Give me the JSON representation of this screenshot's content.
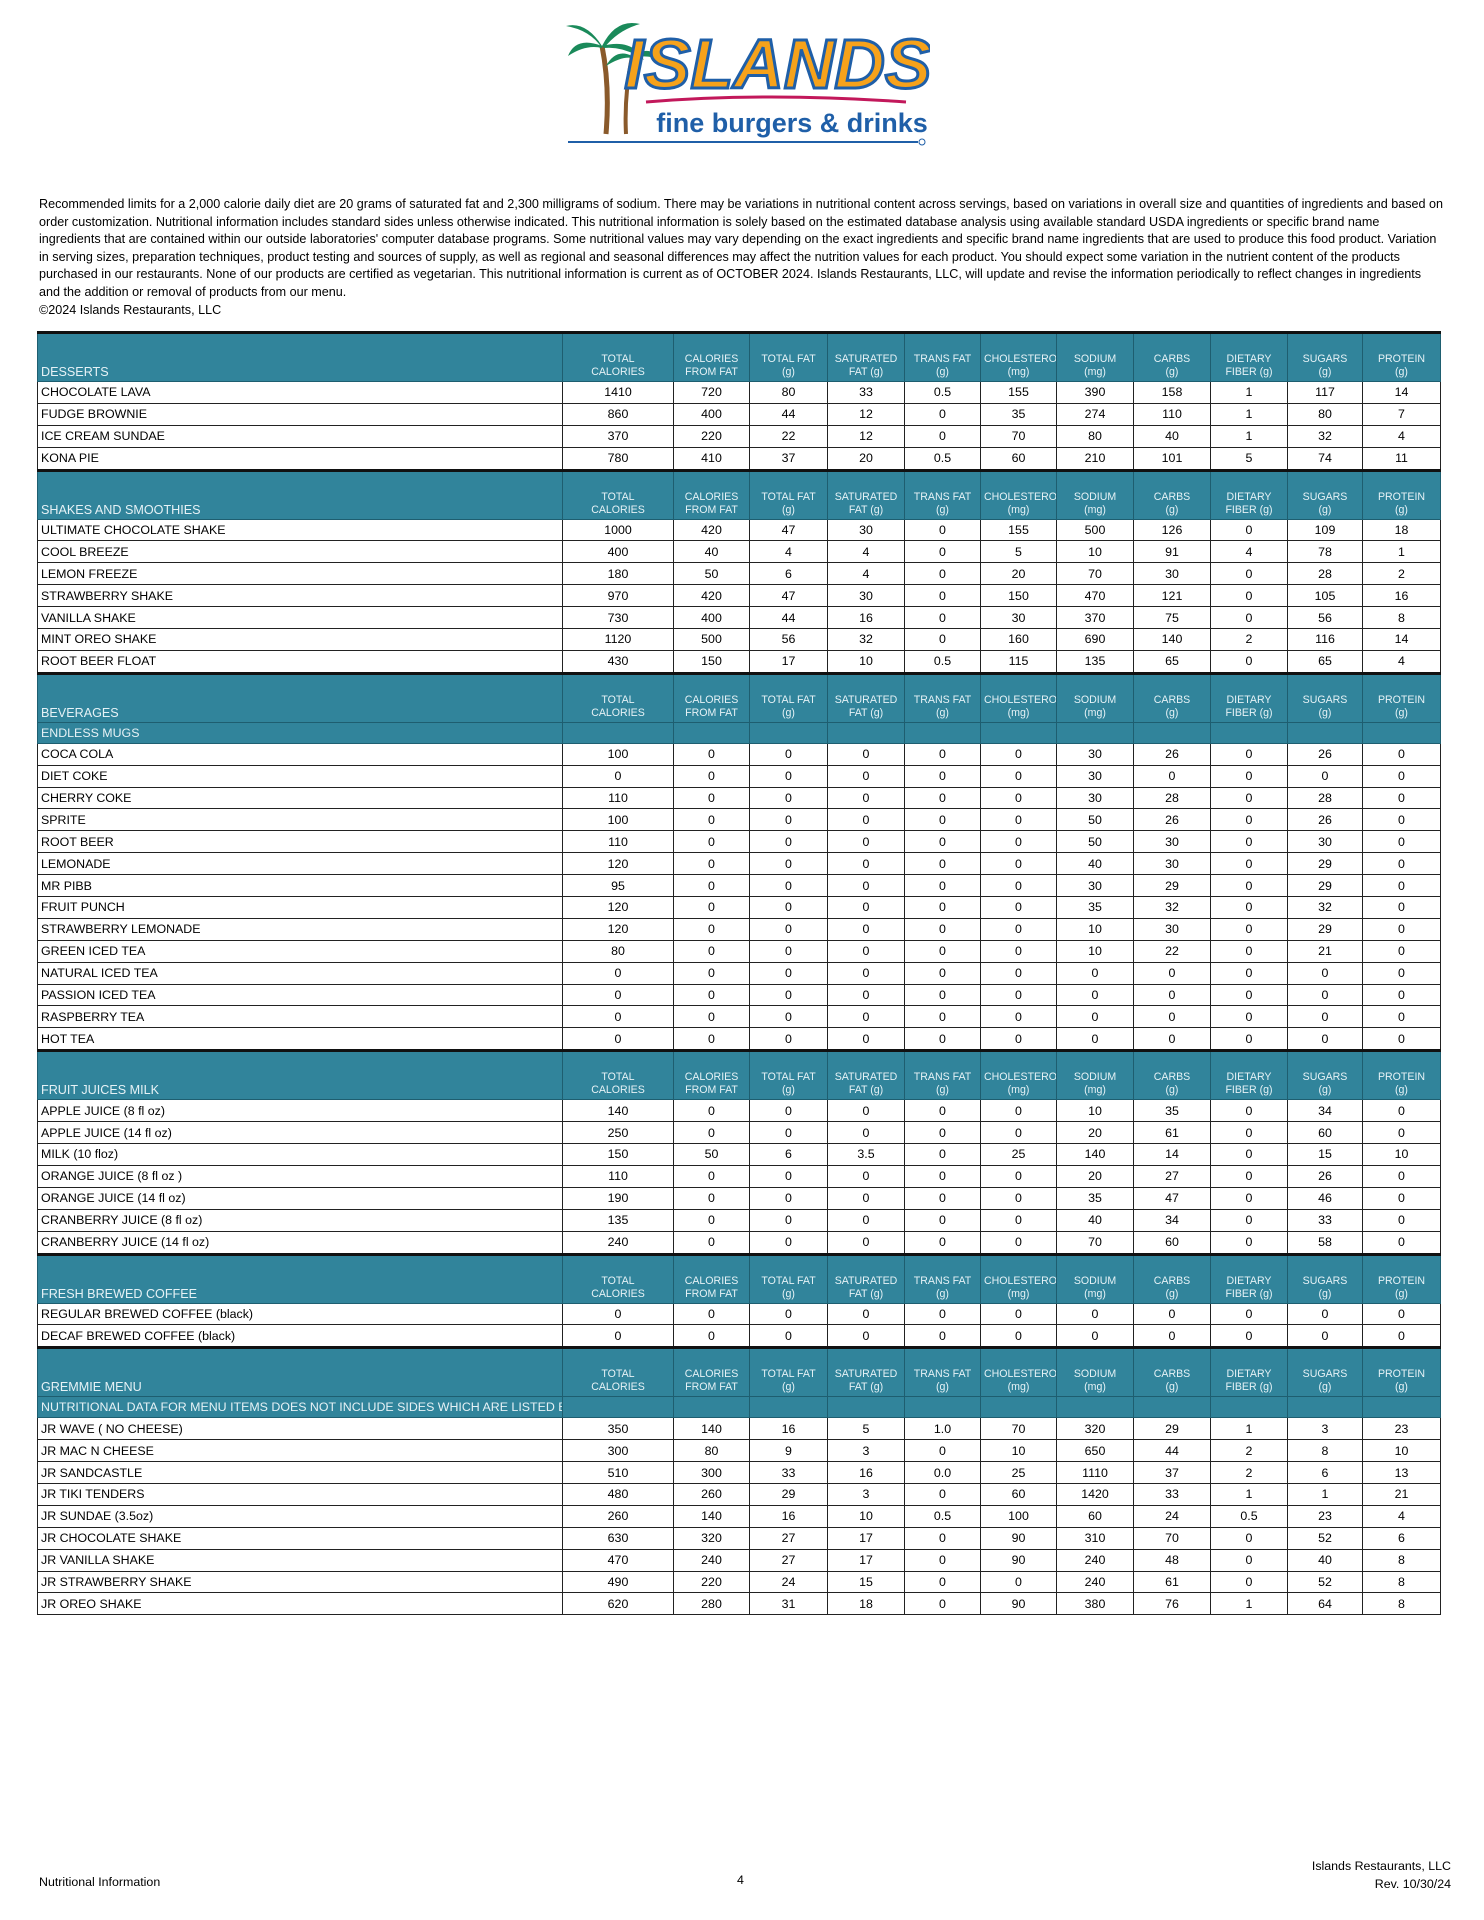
{
  "logo": {
    "brand": "ISLANDS",
    "tagline": "fine burgers & drinks"
  },
  "disclaimer": "Recommended limits for a 2,000 calorie daily diet are 20 grams of saturated fat and 2,300 milligrams of sodium. There may be variations in nutritional content across servings, based on variations in overall size and quantities of ingredients and based on order customization. Nutritional information includes standard sides unless otherwise indicated. This nutritional information is solely based on the estimated database analysis using available standard USDA ingredients or specific brand name ingredients that are contained within our outside laboratories' computer database programs. Some nutritional values may vary depending on the exact ingredients and specific brand name ingredients that are used to produce this food product.  Variation in serving sizes, preparation techniques, product testing and sources of supply, as well as regional and seasonal differences may affect the nutrition values for each product. You should expect some variation in the nutrient content of the products purchased in our restaurants. None of our products are certified as vegetarian. This nutritional information is current as of OCTOBER 2024.  Islands Restaurants, LLC, will update and revise the information periodically to reflect changes in ingredients and the addition or removal of products from our menu.",
  "copyright": "©2024 Islands Restaurants, LLC",
  "columns": [
    [
      "TOTAL",
      "CALORIES"
    ],
    [
      "CALORIES",
      "FROM FAT"
    ],
    [
      "TOTAL FAT",
      "(g)"
    ],
    [
      "SATURATED",
      "FAT (g)"
    ],
    [
      "TRANS FAT",
      "(g)"
    ],
    [
      "CHOLESTEROL",
      "(mg)"
    ],
    [
      "SODIUM",
      "(mg)"
    ],
    [
      "CARBS",
      "(g)"
    ],
    [
      "DIETARY",
      "FIBER (g)"
    ],
    [
      "SUGARS",
      "(g)"
    ],
    [
      "PROTEIN",
      "(g)"
    ]
  ],
  "header_color": "#31849b",
  "sections": [
    {
      "title": "DESSERTS",
      "rows": [
        [
          "CHOCOLATE LAVA",
          "1410",
          "720",
          "80",
          "33",
          "0.5",
          "155",
          "390",
          "158",
          "1",
          "117",
          "14"
        ],
        [
          "FUDGE BROWNIE",
          "860",
          "400",
          "44",
          "12",
          "0",
          "35",
          "274",
          "110",
          "1",
          "80",
          "7"
        ],
        [
          "ICE CREAM SUNDAE",
          "370",
          "220",
          "22",
          "12",
          "0",
          "70",
          "80",
          "40",
          "1",
          "32",
          "4"
        ],
        [
          "KONA PIE",
          "780",
          "410",
          "37",
          "20",
          "0.5",
          "60",
          "210",
          "101",
          "5",
          "74",
          "11"
        ]
      ]
    },
    {
      "title": "SHAKES AND SMOOTHIES",
      "rows": [
        [
          "ULTIMATE CHOCOLATE SHAKE",
          "1000",
          "420",
          "47",
          "30",
          "0",
          "155",
          "500",
          "126",
          "0",
          "109",
          "18"
        ],
        [
          "COOL BREEZE",
          "400",
          "40",
          "4",
          "4",
          "0",
          "5",
          "10",
          "91",
          "4",
          "78",
          "1"
        ],
        [
          "LEMON FREEZE",
          "180",
          "50",
          "6",
          "4",
          "0",
          "20",
          "70",
          "30",
          "0",
          "28",
          "2"
        ],
        [
          "STRAWBERRY SHAKE",
          "970",
          "420",
          "47",
          "30",
          "0",
          "150",
          "470",
          "121",
          "0",
          "105",
          "16"
        ],
        [
          "VANILLA SHAKE",
          "730",
          "400",
          "44",
          "16",
          "0",
          "30",
          "370",
          "75",
          "0",
          "56",
          "8"
        ],
        [
          "MINT OREO SHAKE",
          "1120",
          "500",
          "56",
          "32",
          "0",
          "160",
          "690",
          "140",
          "2",
          "116",
          "14"
        ],
        [
          "ROOT BEER FLOAT",
          "430",
          "150",
          "17",
          "10",
          "0.5",
          "115",
          "135",
          "65",
          "0",
          "65",
          "4"
        ]
      ]
    },
    {
      "title": "BEVERAGES",
      "subtitle": "ENDLESS MUGS",
      "rows": [
        [
          "COCA COLA",
          "100",
          "0",
          "0",
          "0",
          "0",
          "0",
          "30",
          "26",
          "0",
          "26",
          "0"
        ],
        [
          "DIET COKE",
          "0",
          "0",
          "0",
          "0",
          "0",
          "0",
          "30",
          "0",
          "0",
          "0",
          "0"
        ],
        [
          "CHERRY COKE",
          "110",
          "0",
          "0",
          "0",
          "0",
          "0",
          "30",
          "28",
          "0",
          "28",
          "0"
        ],
        [
          "SPRITE",
          "100",
          "0",
          "0",
          "0",
          "0",
          "0",
          "50",
          "26",
          "0",
          "26",
          "0"
        ],
        [
          "ROOT BEER",
          "110",
          "0",
          "0",
          "0",
          "0",
          "0",
          "50",
          "30",
          "0",
          "30",
          "0"
        ],
        [
          "LEMONADE",
          "120",
          "0",
          "0",
          "0",
          "0",
          "0",
          "40",
          "30",
          "0",
          "29",
          "0"
        ],
        [
          "MR PIBB",
          "95",
          "0",
          "0",
          "0",
          "0",
          "0",
          "30",
          "29",
          "0",
          "29",
          "0"
        ],
        [
          "FRUIT PUNCH",
          "120",
          "0",
          "0",
          "0",
          "0",
          "0",
          "35",
          "32",
          "0",
          "32",
          "0"
        ],
        [
          "STRAWBERRY LEMONADE",
          "120",
          "0",
          "0",
          "0",
          "0",
          "0",
          "10",
          "30",
          "0",
          "29",
          "0"
        ],
        [
          "GREEN ICED TEA",
          "80",
          "0",
          "0",
          "0",
          "0",
          "0",
          "10",
          "22",
          "0",
          "21",
          "0"
        ],
        [
          "NATURAL ICED TEA",
          "0",
          "0",
          "0",
          "0",
          "0",
          "0",
          "0",
          "0",
          "0",
          "0",
          "0"
        ],
        [
          "PASSION ICED TEA",
          "0",
          "0",
          "0",
          "0",
          "0",
          "0",
          "0",
          "0",
          "0",
          "0",
          "0"
        ],
        [
          "RASPBERRY TEA",
          "0",
          "0",
          "0",
          "0",
          "0",
          "0",
          "0",
          "0",
          "0",
          "0",
          "0"
        ],
        [
          "HOT TEA",
          "0",
          "0",
          "0",
          "0",
          "0",
          "0",
          "0",
          "0",
          "0",
          "0",
          "0"
        ]
      ]
    },
    {
      "title": "FRUIT JUICES MILK",
      "rows": [
        [
          "APPLE JUICE (8 fl oz)",
          "140",
          "0",
          "0",
          "0",
          "0",
          "0",
          "10",
          "35",
          "0",
          "34",
          "0"
        ],
        [
          "APPLE JUICE (14 fl oz)",
          "250",
          "0",
          "0",
          "0",
          "0",
          "0",
          "20",
          "61",
          "0",
          "60",
          "0"
        ],
        [
          "MILK (10 floz)",
          "150",
          "50",
          "6",
          "3.5",
          "0",
          "25",
          "140",
          "14",
          "0",
          "15",
          "10"
        ],
        [
          "ORANGE JUICE (8 fl oz )",
          "110",
          "0",
          "0",
          "0",
          "0",
          "0",
          "20",
          "27",
          "0",
          "26",
          "0"
        ],
        [
          "ORANGE JUICE (14 fl oz)",
          "190",
          "0",
          "0",
          "0",
          "0",
          "0",
          "35",
          "47",
          "0",
          "46",
          "0"
        ],
        [
          "CRANBERRY JUICE (8 fl oz)",
          "135",
          "0",
          "0",
          "0",
          "0",
          "0",
          "40",
          "34",
          "0",
          "33",
          "0"
        ],
        [
          "CRANBERRY JUICE (14 fl oz)",
          "240",
          "0",
          "0",
          "0",
          "0",
          "0",
          "70",
          "60",
          "0",
          "58",
          "0"
        ]
      ]
    },
    {
      "title": "FRESH BREWED COFFEE",
      "rows": [
        [
          "REGULAR BREWED COFFEE (black)",
          "0",
          "0",
          "0",
          "0",
          "0",
          "0",
          "0",
          "0",
          "0",
          "0",
          "0"
        ],
        [
          "DECAF BREWED COFFEE (black)",
          "0",
          "0",
          "0",
          "0",
          "0",
          "0",
          "0",
          "0",
          "0",
          "0",
          "0"
        ]
      ]
    },
    {
      "title": "GREMMIE MENU",
      "subtitle": "NUTRITIONAL DATA FOR MENU ITEMS DOES NOT INCLUDE SIDES WHICH ARE LISTED BELOW",
      "rows": [
        [
          "JR WAVE ( NO CHEESE)",
          "350",
          "140",
          "16",
          "5",
          "1.0",
          "70",
          "320",
          "29",
          "1",
          "3",
          "23"
        ],
        [
          "JR MAC N CHEESE",
          "300",
          "80",
          "9",
          "3",
          "0",
          "10",
          "650",
          "44",
          "2",
          "8",
          "10"
        ],
        [
          "JR SANDCASTLE",
          "510",
          "300",
          "33",
          "16",
          "0.0",
          "25",
          "1110",
          "37",
          "2",
          "6",
          "13"
        ],
        [
          "JR TIKI TENDERS",
          "480",
          "260",
          "29",
          "3",
          "0",
          "60",
          "1420",
          "33",
          "1",
          "1",
          "21"
        ],
        [
          "JR SUNDAE (3.5oz)",
          "260",
          "140",
          "16",
          "10",
          "0.5",
          "100",
          "60",
          "24",
          "0.5",
          "23",
          "4"
        ],
        [
          "JR CHOCOLATE SHAKE",
          "630",
          "320",
          "27",
          "17",
          "0",
          "90",
          "310",
          "70",
          "0",
          "52",
          "6"
        ],
        [
          "JR VANILLA SHAKE",
          "470",
          "240",
          "27",
          "17",
          "0",
          "90",
          "240",
          "48",
          "0",
          "40",
          "8"
        ],
        [
          "JR STRAWBERRY SHAKE",
          "490",
          "220",
          "24",
          "15",
          "0",
          "0",
          "240",
          "61",
          "0",
          "52",
          "8"
        ],
        [
          "JR OREO SHAKE",
          "620",
          "280",
          "31",
          "18",
          "0",
          "90",
          "380",
          "76",
          "1",
          "64",
          "8"
        ]
      ]
    }
  ],
  "footer": {
    "left": "Nutritional Information",
    "page": "4",
    "company": "Islands Restaurants, LLC",
    "revision": "Rev. 10/30/24"
  }
}
